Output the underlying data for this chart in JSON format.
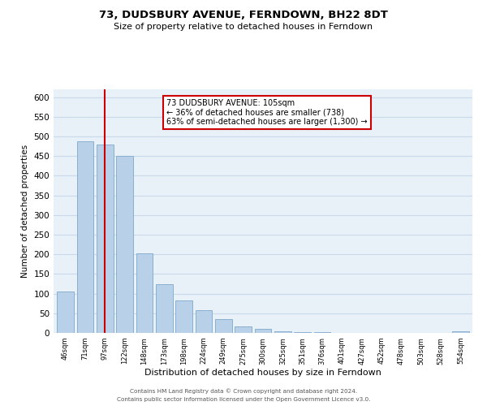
{
  "title": "73, DUDSBURY AVENUE, FERNDOWN, BH22 8DT",
  "subtitle": "Size of property relative to detached houses in Ferndown",
  "xlabel": "Distribution of detached houses by size in Ferndown",
  "ylabel": "Number of detached properties",
  "bar_labels": [
    "46sqm",
    "71sqm",
    "97sqm",
    "122sqm",
    "148sqm",
    "173sqm",
    "198sqm",
    "224sqm",
    "249sqm",
    "275sqm",
    "300sqm",
    "325sqm",
    "351sqm",
    "376sqm",
    "401sqm",
    "427sqm",
    "452sqm",
    "478sqm",
    "503sqm",
    "528sqm",
    "554sqm"
  ],
  "bar_values": [
    105,
    488,
    480,
    450,
    202,
    123,
    82,
    57,
    35,
    16,
    10,
    5,
    2,
    2,
    1,
    0,
    1,
    0,
    0,
    0,
    4
  ],
  "bar_color": "#b8d0e8",
  "bar_edge_color": "#8ab0d0",
  "vline_x": 2,
  "vline_color": "#cc0000",
  "annotation_text": "73 DUDSBURY AVENUE: 105sqm\n← 36% of detached houses are smaller (738)\n63% of semi-detached houses are larger (1,300) →",
  "annotation_box_color": "#ffffff",
  "annotation_box_edge": "#cc0000",
  "ylim": [
    0,
    620
  ],
  "yticks": [
    0,
    50,
    100,
    150,
    200,
    250,
    300,
    350,
    400,
    450,
    500,
    550,
    600
  ],
  "grid_color": "#c8daea",
  "background_color": "#e8f0f8",
  "footer_line1": "Contains HM Land Registry data © Crown copyright and database right 2024.",
  "footer_line2": "Contains public sector information licensed under the Open Government Licence v3.0."
}
